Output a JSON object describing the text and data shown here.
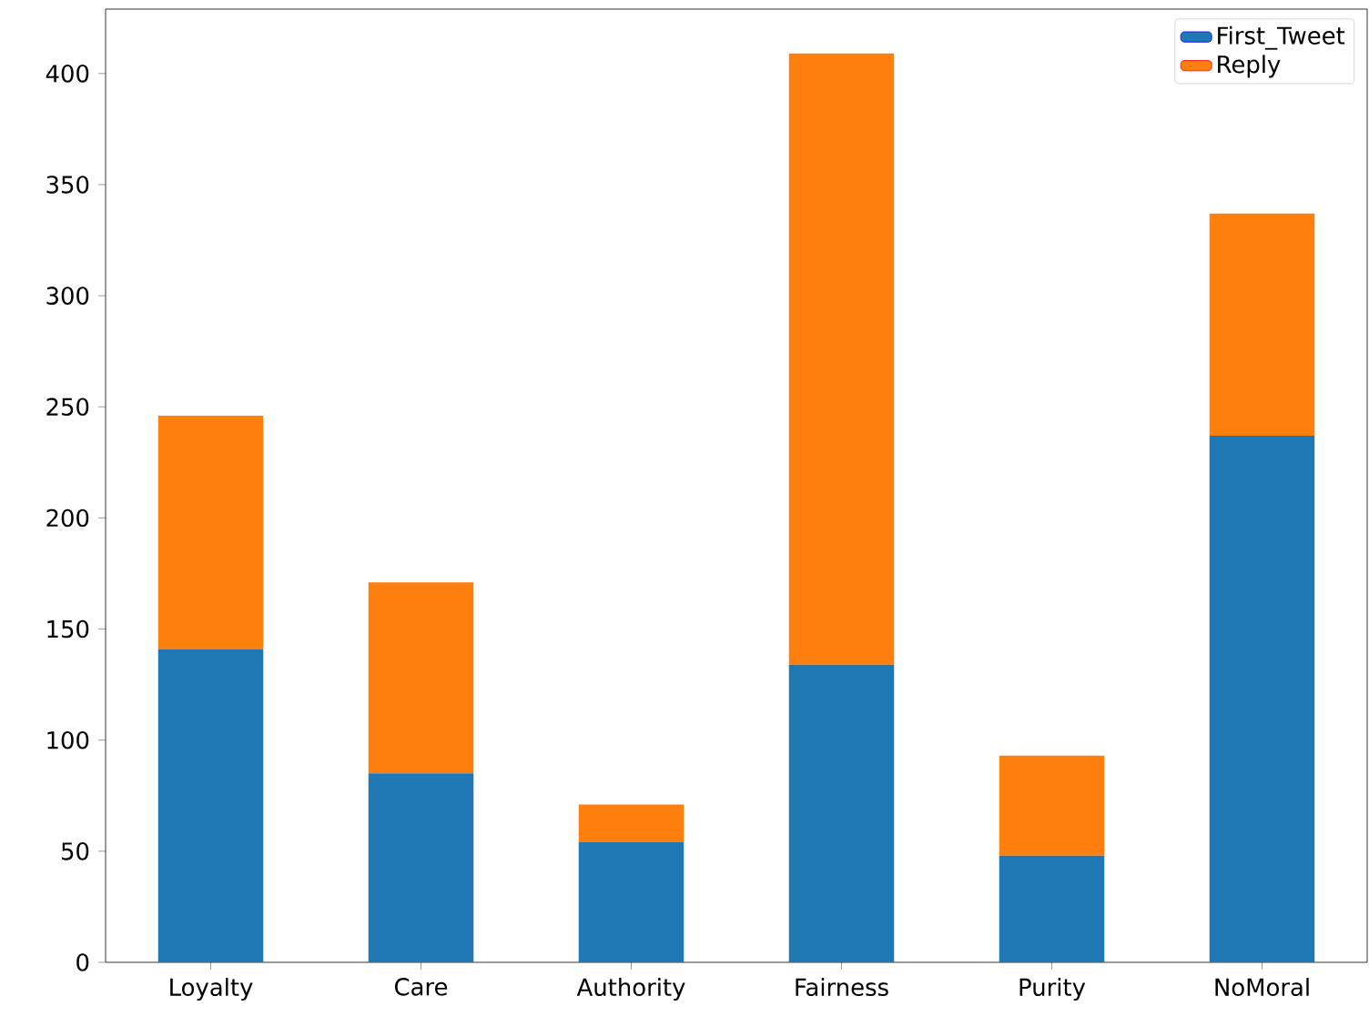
{
  "chart_data": {
    "type": "bar",
    "stacked": true,
    "categories": [
      "Loyalty",
      "Care",
      "Authority",
      "Fairness",
      "Purity",
      "NoMoral"
    ],
    "series": [
      {
        "name": "First_Tweet",
        "color": "#1f77b4",
        "values": [
          141,
          85,
          54,
          134,
          48,
          237
        ]
      },
      {
        "name": "Reply",
        "color": "#ff7f0e",
        "values": [
          105,
          86,
          17,
          275,
          45,
          100
        ]
      }
    ],
    "ylim": [
      0,
      429
    ],
    "yticks": [
      0,
      50,
      100,
      150,
      200,
      250,
      300,
      350,
      400
    ],
    "legend": "top right",
    "grid": false
  }
}
